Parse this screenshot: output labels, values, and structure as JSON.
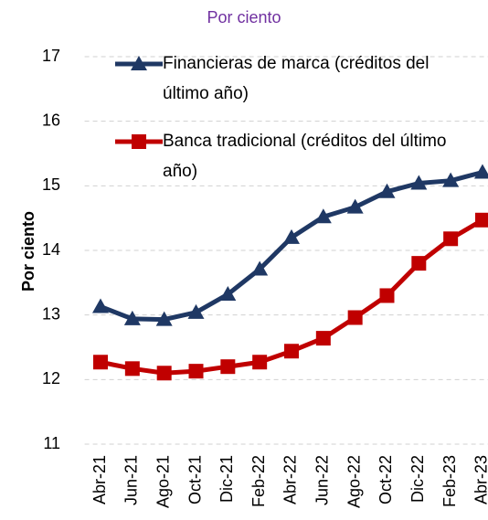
{
  "chart_data": {
    "type": "line",
    "subtitle": "Por ciento",
    "y_label": "Por ciento",
    "categories": [
      "Abr-21",
      "Jun-21",
      "Ago-21",
      "Oct-21",
      "Dic-21",
      "Feb-22",
      "Abr-22",
      "Jun-22",
      "Ago-22",
      "Oct-22",
      "Dic-22",
      "Feb-23",
      "Abr-23"
    ],
    "series": [
      {
        "name": "Financieras de marca (créditos del último año)",
        "color": "#1f3864",
        "marker": "triangle",
        "values": [
          13.13,
          12.94,
          12.93,
          13.04,
          13.32,
          13.71,
          14.2,
          14.52,
          14.67,
          14.91,
          15.04,
          15.08,
          15.21
        ]
      },
      {
        "name": "Banca tradicional (créditos del último año)",
        "color": "#c00000",
        "marker": "square",
        "values": [
          12.27,
          12.17,
          12.1,
          12.13,
          12.2,
          12.27,
          12.44,
          12.64,
          12.96,
          13.3,
          13.8,
          14.18,
          14.47
        ]
      }
    ],
    "ylim": [
      11,
      17
    ],
    "yticks": [
      11,
      12,
      13,
      14,
      15,
      16,
      17
    ],
    "grid": true
  }
}
